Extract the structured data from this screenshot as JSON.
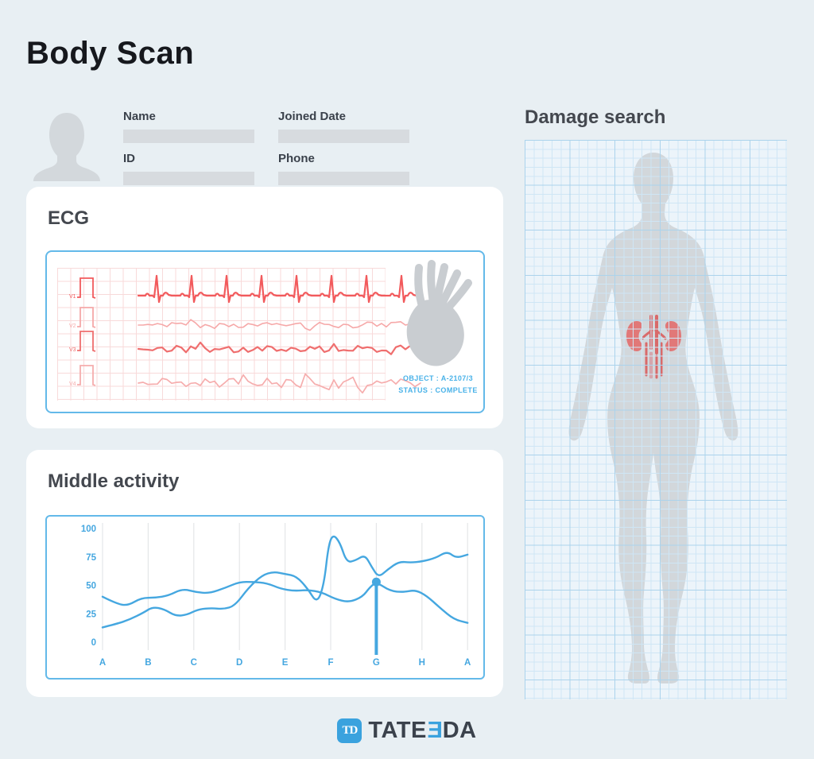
{
  "page": {
    "title": "Body Scan",
    "background": "#e8eff3",
    "accent_blue": "#45a7e0"
  },
  "patient": {
    "fields": [
      {
        "label": "Name",
        "value": ""
      },
      {
        "label": "Joined Date",
        "value": ""
      },
      {
        "label": "ID",
        "value": ""
      },
      {
        "label": "Phone",
        "value": ""
      }
    ]
  },
  "ecg": {
    "title": "ECG",
    "leads": [
      "V1",
      "V2",
      "V3",
      "V4"
    ],
    "lead_colors": [
      "#f25a5c",
      "#f6a8a8",
      "#ef6e6e",
      "#f6adad"
    ],
    "grid_color": "#f8dada",
    "object_label": "OBJECT : A-2107/3",
    "status_label": "STATUS : COMPLETE"
  },
  "activity": {
    "title": "Middle activity"
  },
  "chart_data": {
    "type": "line",
    "title": "Middle activity",
    "x_labels": [
      "A",
      "B",
      "C",
      "D",
      "E",
      "F",
      "G",
      "H",
      "A"
    ],
    "y_ticks": [
      100,
      75,
      50,
      25,
      0
    ],
    "ylim": [
      0,
      100
    ],
    "grid": "vertical",
    "legend": "none",
    "line_color": "#45a7e0",
    "grid_line_color": "#e4e6e8",
    "series": [
      {
        "name": "activity-series-1",
        "points": [
          [
            0,
            40
          ],
          [
            0.3,
            34
          ],
          [
            0.55,
            32
          ],
          [
            0.85,
            39
          ],
          [
            1.15,
            39
          ],
          [
            1.45,
            41
          ],
          [
            1.75,
            47
          ],
          [
            2.05,
            44
          ],
          [
            2.35,
            43
          ],
          [
            2.7,
            48
          ],
          [
            3,
            53
          ],
          [
            3.3,
            53
          ],
          [
            3.6,
            52
          ],
          [
            3.9,
            47
          ],
          [
            4.2,
            45
          ],
          [
            4.5,
            46
          ],
          [
            4.8,
            44
          ],
          [
            5.1,
            38
          ],
          [
            5.4,
            35
          ],
          [
            5.7,
            40
          ],
          [
            5.85,
            48
          ],
          [
            6,
            53
          ],
          [
            6.3,
            45
          ],
          [
            6.6,
            44
          ],
          [
            6.85,
            46
          ],
          [
            7.1,
            41
          ],
          [
            7.4,
            30
          ],
          [
            7.7,
            20
          ],
          [
            8,
            17
          ]
        ]
      },
      {
        "name": "activity-series-2",
        "points": [
          [
            0,
            13
          ],
          [
            0.3,
            16
          ],
          [
            0.6,
            20
          ],
          [
            0.9,
            26
          ],
          [
            1.1,
            31
          ],
          [
            1.35,
            29
          ],
          [
            1.6,
            23
          ],
          [
            1.85,
            24
          ],
          [
            2.1,
            29
          ],
          [
            2.4,
            30
          ],
          [
            2.65,
            29
          ],
          [
            2.9,
            32
          ],
          [
            3.2,
            48
          ],
          [
            3.5,
            59
          ],
          [
            3.75,
            62
          ],
          [
            4,
            60
          ],
          [
            4.25,
            58
          ],
          [
            4.5,
            47
          ],
          [
            4.7,
            34
          ],
          [
            4.85,
            50
          ],
          [
            4.95,
            85
          ],
          [
            5.05,
            95
          ],
          [
            5.2,
            88
          ],
          [
            5.35,
            70
          ],
          [
            5.55,
            72
          ],
          [
            5.75,
            77
          ],
          [
            5.9,
            66
          ],
          [
            6.05,
            57
          ],
          [
            6.25,
            64
          ],
          [
            6.5,
            71
          ],
          [
            6.75,
            70
          ],
          [
            7,
            71
          ],
          [
            7.3,
            74
          ],
          [
            7.55,
            80
          ],
          [
            7.75,
            74
          ],
          [
            8,
            77
          ]
        ]
      }
    ],
    "marker": {
      "x_label": "G",
      "x": 6,
      "value": 53
    }
  },
  "damage": {
    "title": "Damage search",
    "highlighted_organ": "kidneys",
    "organ_color": "#e17878",
    "vessel_color": "#d96a6a",
    "body_color": "#d2d7db"
  },
  "logo": {
    "icon_text": "TD",
    "text_prefix": "TATE",
    "flipped_letter": "E",
    "text_suffix": "DA"
  }
}
